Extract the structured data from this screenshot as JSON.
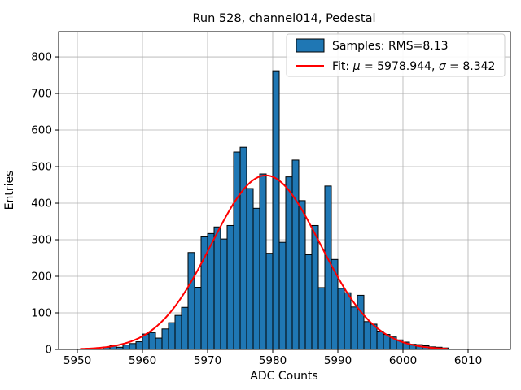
{
  "chart_data": {
    "type": "bar",
    "title": "Run 528, channel014, Pedestal",
    "xlabel": "ADC Counts",
    "ylabel": "Entries",
    "xlim": [
      5947.125,
      6016.5
    ],
    "ylim": [
      0,
      869
    ],
    "xticks": [
      5950,
      5960,
      5970,
      5980,
      5990,
      6000,
      6010
    ],
    "yticks": [
      0,
      100,
      200,
      300,
      400,
      500,
      600,
      700,
      800
    ],
    "grid": true,
    "bin_start": 5954,
    "bin_width": 1,
    "values": [
      6,
      11,
      6,
      12,
      16,
      21,
      42,
      46,
      31,
      56,
      73,
      93,
      115,
      265,
      170,
      308,
      317,
      335,
      302,
      339,
      540,
      553,
      440,
      386,
      480,
      263,
      762,
      293,
      472,
      518,
      407,
      259,
      339,
      169,
      447,
      246,
      167,
      155,
      116,
      148,
      76,
      69,
      50,
      41,
      34,
      26,
      20,
      14,
      13,
      10,
      7,
      6,
      4
    ],
    "fit": {
      "type": "gaussian",
      "mu": 5978.944,
      "sigma": 8.342,
      "amplitude": 476,
      "x_range": [
        5950.5,
        6006.8
      ]
    },
    "legend": {
      "position": "upper right",
      "entries": [
        {
          "type": "patch",
          "label": "Samples: RMS=8.13",
          "segments": [
            {
              "text": "Samples: RMS=8.13"
            }
          ]
        },
        {
          "type": "line",
          "label": "Fit: μ = 5978.944, σ = 8.342",
          "segments": [
            {
              "text": "Fit: "
            },
            {
              "text": "μ",
              "italic": true
            },
            {
              "text": " = 5978.944, "
            },
            {
              "text": "σ",
              "italic": true
            },
            {
              "text": " = 8.342"
            }
          ]
        }
      ]
    },
    "colors": {
      "bar_fill": "#1f77b4",
      "bar_edge": "#000000",
      "fit_line": "#ff0000",
      "grid": "#b0b0b0",
      "spine": "#000000",
      "legend_border": "#cccccc",
      "legend_bg": "rgba(255,255,255,0.9)"
    },
    "rms": 8.13
  }
}
